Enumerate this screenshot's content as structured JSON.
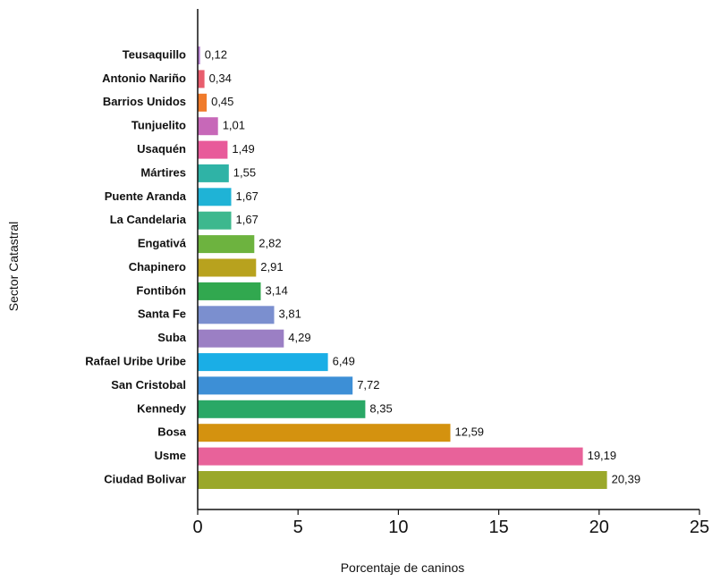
{
  "chart_data": {
    "type": "bar",
    "orientation": "horizontal",
    "categories": [
      "Teusaquillo",
      "Antonio Nariño",
      "Barrios Unidos",
      "Tunjuelito",
      "Usaquén",
      "Mártires",
      "Puente Aranda",
      "La Candelaria",
      "Engativá",
      "Chapinero",
      "Fontibón",
      "Santa Fe",
      "Suba",
      "Rafael Uribe Uribe",
      "San Cristobal",
      "Kennedy",
      "Bosa",
      "Usme",
      "Ciudad Bolivar"
    ],
    "values": [
      0.12,
      0.34,
      0.45,
      1.01,
      1.49,
      1.55,
      1.67,
      1.67,
      2.82,
      2.91,
      3.14,
      3.81,
      4.29,
      6.49,
      7.72,
      8.35,
      12.59,
      19.19,
      20.39
    ],
    "value_labels": [
      "0,12",
      "0,34",
      "0,45",
      "1,01",
      "1,49",
      "1,55",
      "1,67",
      "1,67",
      "2,82",
      "2,91",
      "3,14",
      "3,81",
      "4,29",
      "6,49",
      "7,72",
      "8,35",
      "12,59",
      "19,19",
      "20,39"
    ],
    "colors": [
      "#b57fd0",
      "#e85d6d",
      "#f07b2b",
      "#c768b8",
      "#e85a9a",
      "#2fb3a6",
      "#1fb3d6",
      "#3db88e",
      "#6db33f",
      "#b8a21e",
      "#31a84f",
      "#7b8fcf",
      "#9b7fc4",
      "#1aaee6",
      "#3d8fd6",
      "#2aa866",
      "#d4920f",
      "#e8629a",
      "#9aa82a"
    ],
    "xlabel": "Porcentaje de caninos",
    "ylabel": "Sector Catastral",
    "xlim": [
      0,
      25
    ],
    "xticks": [
      "0",
      "5",
      "10",
      "15",
      "20",
      "25"
    ],
    "grid": false
  }
}
